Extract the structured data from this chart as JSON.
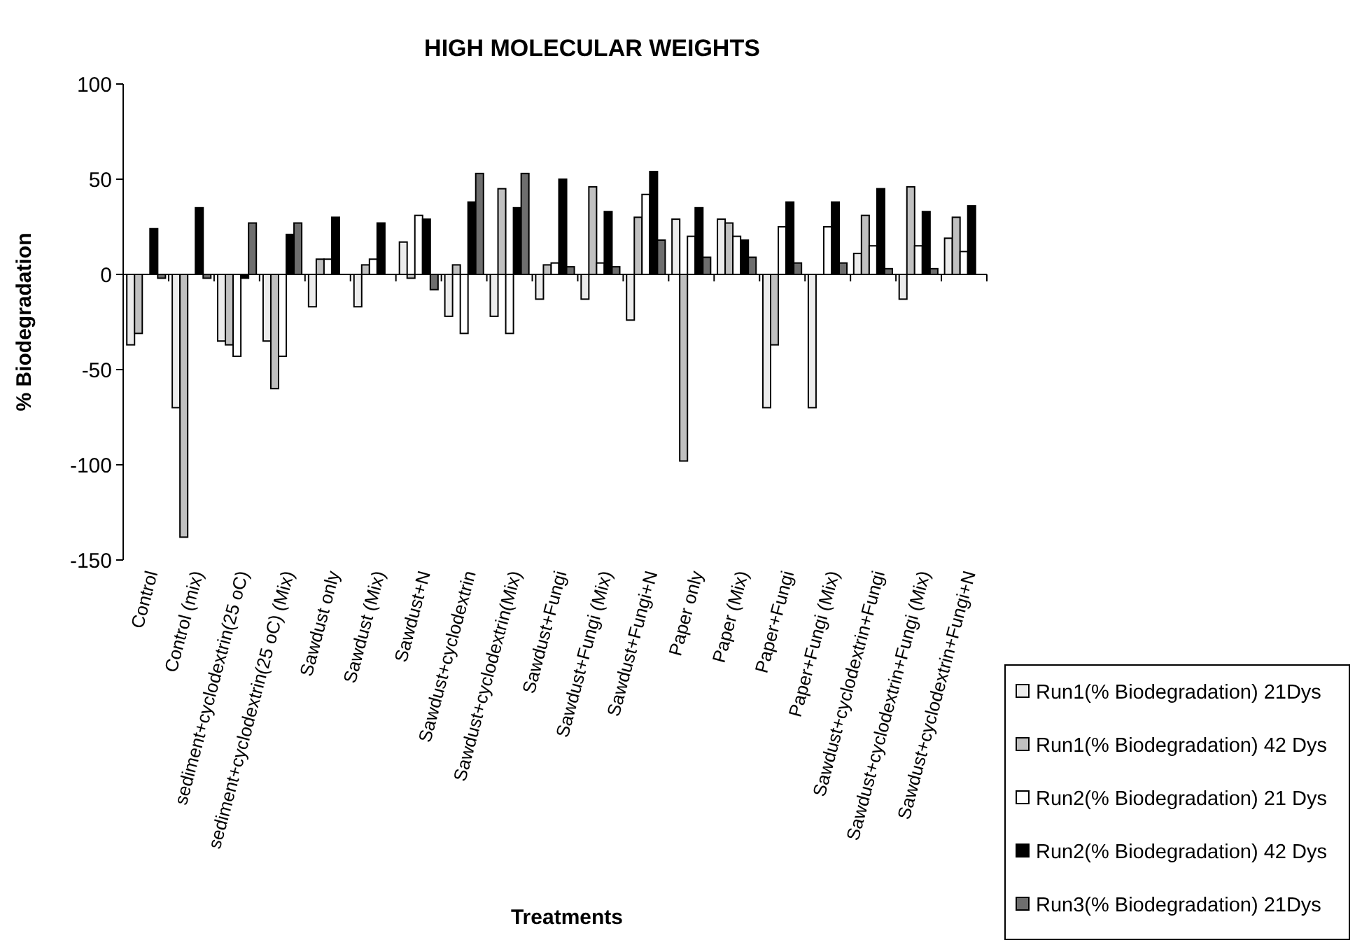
{
  "chart_data": {
    "type": "bar",
    "title": "HIGH MOLECULAR WEIGHTS",
    "xlabel": "Treatments",
    "ylabel": "% Biodegradation",
    "categories": [
      "Control",
      "Control (mix)",
      "sediment+cyclodextrin(25 oC)",
      "sediment+cyclodextrin(25 oC) (Mix)",
      "Sawdust only",
      "Sawdust (Mix)",
      "Sawdust+N",
      "Sawdust+cyclodextrin",
      "Sawdust+cyclodextrin(Mix)",
      "Sawdust+Fungi",
      "Sawdust+Fungi (Mix)",
      "Sawdust+Fungi+N",
      "Paper only",
      "Paper (Mix)",
      "Paper+Fungi",
      "Paper+Fungi (Mix)",
      "Sawdust+cyclodextrin+Fungi",
      "Sawdust+cyclodextrin+Fungi (Mix)",
      "Sawdust+cyclodextrin+Fungi+N"
    ],
    "series": [
      {
        "name": "Run1(%  Biodegradation) 21Dys",
        "color": "#ececec",
        "values": [
          -37,
          -70,
          -35,
          -35,
          -17,
          -17,
          17,
          -22,
          -22,
          -13,
          -13,
          -24,
          29,
          29,
          -70,
          -70,
          11,
          -13,
          19
        ]
      },
      {
        "name": "Run1(%  Biodegradation) 42 Dys",
        "color": "#c0c0c0",
        "values": [
          -31,
          -138,
          -37,
          -60,
          8,
          5,
          -2,
          5,
          45,
          5,
          46,
          30,
          -98,
          27,
          -37,
          0,
          31,
          46,
          30
        ]
      },
      {
        "name": "Run2(%  Biodegradation) 21 Dys",
        "color": "#ffffff",
        "values": [
          0,
          0,
          -43,
          -43,
          8,
          8,
          31,
          -31,
          -31,
          6,
          6,
          42,
          20,
          20,
          25,
          25,
          15,
          15,
          12
        ]
      },
      {
        "name": "Run2(%  Biodegradation) 42 Dys",
        "color": "#000000",
        "values": [
          24,
          35,
          -2,
          21,
          30,
          27,
          29,
          38,
          35,
          50,
          33,
          54,
          35,
          18,
          38,
          38,
          45,
          33,
          36
        ]
      },
      {
        "name": "Run3(%  Biodegradation) 21Dys",
        "color": "#6e6e6e",
        "values": [
          -2,
          -2,
          27,
          27,
          0,
          0,
          -8,
          53,
          53,
          4,
          4,
          18,
          9,
          9,
          6,
          6,
          3,
          3,
          0
        ]
      }
    ],
    "ylim": [
      -150,
      100
    ],
    "yticks": [
      -150,
      -100,
      -50,
      0,
      50,
      100
    ],
    "legend": "bottom right"
  }
}
